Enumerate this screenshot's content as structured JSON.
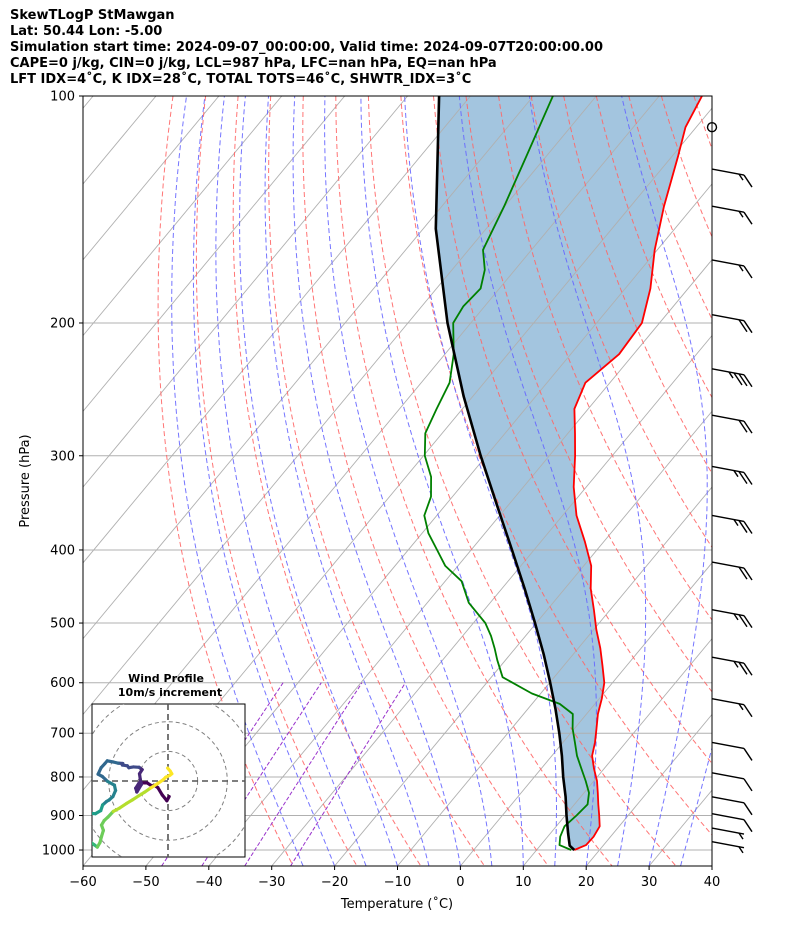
{
  "header": {
    "line1": "SkewTLogP StMawgan",
    "line2": "Lat: 50.44   Lon: -5.00",
    "line3": "Simulation start time: 2024-09-07_00:00:00, Valid time: 2024-09-07T20:00:00.00",
    "line4": "CAPE=0 j/kg, CIN=0 j/kg, LCL=987 hPa, LFC=nan hPa, EQ=nan hPa",
    "line5": "LFT IDX=4˚C, K IDX=28˚C, TOTAL TOTS=46˚C, SHWTR_IDX=3˚C"
  },
  "chart_data": [
    {
      "type": "line",
      "subtype": "skewt-logp",
      "xlabel": "Temperature (˚C)",
      "ylabel": "Pressure (hPa)",
      "xlim": [
        -60,
        40
      ],
      "ylim": [
        1050,
        100
      ],
      "y_scale": "log",
      "grid": true,
      "x_ticks": [
        "−60",
        "−50",
        "−40",
        "−30",
        "−20",
        "−10",
        "0",
        "10",
        "20",
        "30",
        "40"
      ],
      "x_tick_values": [
        -60,
        -50,
        -40,
        -30,
        -20,
        -10,
        0,
        10,
        20,
        30,
        40
      ],
      "y_ticks": [
        "100",
        "200",
        "300",
        "400",
        "500",
        "600",
        "700",
        "800",
        "900",
        "1000"
      ],
      "y_tick_values": [
        100,
        200,
        300,
        400,
        500,
        600,
        700,
        800,
        900,
        1000
      ],
      "colors": {
        "temperature": "#ff0000",
        "dewpoint": "#008000",
        "parcel": "#000000",
        "shade": "#a3c5df",
        "dry_adiabat": "#ff6666",
        "moist_adiabat": "#6666ff",
        "mixing_ratio": "#9933cc",
        "isotherm": "#b0b0b0"
      },
      "series": [
        {
          "key": "temperature",
          "p": [
            1000,
            985,
            960,
            930,
            900,
            870,
            840,
            810,
            780,
            750,
            720,
            690,
            660,
            630,
            600,
            570,
            540,
            510,
            480,
            450,
            420,
            390,
            360,
            330,
            300,
            280,
            260,
            240,
            220,
            200,
            180,
            160,
            140,
            120,
            110,
            100
          ],
          "t": [
            16.0,
            17.2,
            17.3,
            16.9,
            15.4,
            13.8,
            12.2,
            10.5,
            8.4,
            6.4,
            5.1,
            3.5,
            1.8,
            0.4,
            -1.3,
            -3.8,
            -6.5,
            -9.6,
            -12.6,
            -15.9,
            -18.8,
            -23.0,
            -27.8,
            -32.0,
            -35.9,
            -38.9,
            -42.2,
            -43.9,
            -42.3,
            -42.8,
            -46.0,
            -50.4,
            -54.7,
            -59.1,
            -61.7,
            -63.2
          ]
        },
        {
          "key": "dewpoint",
          "p": [
            1000,
            985,
            960,
            930,
            900,
            870,
            840,
            810,
            780,
            750,
            720,
            690,
            660,
            640,
            620,
            590,
            560,
            540,
            520,
            500,
            470,
            440,
            420,
            400,
            380,
            360,
            340,
            320,
            300,
            280,
            260,
            240,
            220,
            200,
            190,
            180,
            170,
            160,
            140,
            120,
            100
          ],
          "t": [
            15.5,
            13.0,
            12.0,
            11.3,
            11.8,
            12.1,
            10.8,
            8.7,
            6.4,
            4.0,
            1.9,
            -0.3,
            -2.2,
            -5.6,
            -11.4,
            -18.2,
            -21.3,
            -23.3,
            -25.5,
            -28.1,
            -33.4,
            -37.4,
            -42.0,
            -45.4,
            -49.0,
            -52.0,
            -53.4,
            -56.0,
            -59.8,
            -62.7,
            -64.1,
            -65.5,
            -68.6,
            -72.8,
            -73.4,
            -73.0,
            -74.8,
            -77.7,
            -80.1,
            -83.2,
            -86.9
          ]
        },
        {
          "key": "parcel",
          "p": [
            1000,
            987,
            950,
            900,
            850,
            800,
            750,
            700,
            650,
            600,
            550,
            500,
            450,
            400,
            350,
            300,
            250,
            200,
            150,
            100
          ],
          "t": [
            16.0,
            14.7,
            12.8,
            10.2,
            7.6,
            4.6,
            1.6,
            -1.8,
            -5.6,
            -9.9,
            -14.7,
            -20.2,
            -26.4,
            -33.5,
            -41.6,
            -50.9,
            -61.5,
            -73.7,
            -88.0,
            -105.0
          ]
        }
      ],
      "wind_barbs": [
        {
          "p": 110,
          "speed_kt": 0
        },
        {
          "p": 125,
          "speed_kt": 15
        },
        {
          "p": 140,
          "speed_kt": 15
        },
        {
          "p": 165,
          "speed_kt": 15
        },
        {
          "p": 195,
          "speed_kt": 20
        },
        {
          "p": 230,
          "speed_kt": 35
        },
        {
          "p": 265,
          "speed_kt": 20
        },
        {
          "p": 310,
          "speed_kt": 25
        },
        {
          "p": 360,
          "speed_kt": 25
        },
        {
          "p": 415,
          "speed_kt": 20
        },
        {
          "p": 480,
          "speed_kt": 25
        },
        {
          "p": 555,
          "speed_kt": 25
        },
        {
          "p": 630,
          "speed_kt": 15
        },
        {
          "p": 720,
          "speed_kt": 10
        },
        {
          "p": 790,
          "speed_kt": 10
        },
        {
          "p": 850,
          "speed_kt": 10
        },
        {
          "p": 895,
          "speed_kt": 10
        },
        {
          "p": 935,
          "speed_kt": 5
        },
        {
          "p": 975,
          "speed_kt": 5
        }
      ]
    },
    {
      "type": "line",
      "subtype": "hodograph",
      "title": "Wind Profile",
      "subtitle": "10m/s increment",
      "grid": true,
      "u": [
        0.3,
        -0.3,
        -1.5,
        -2.7,
        -3.7,
        -4.1,
        -5.5,
        -7.6,
        -8.5,
        -8.2,
        -7.0,
        -7.3,
        -7.5,
        -6.8,
        -7.6,
        -9.1,
        -10.3,
        -10.7,
        -12.0,
        -11.9,
        -13.1,
        -14.4,
        -16.0,
        -16.6,
        -17.6,
        -18.4,
        -17.3,
        -15.9,
        -14.1,
        -13.8,
        -14.5,
        -15.5,
        -16.2,
        -17.2,
        -17.7,
        -19.1,
        -20.9,
        -22.0,
        -23.6,
        -24.3,
        -25.2,
        -25.0,
        -23.6,
        -22.3,
        -20.4,
        -19.4,
        -18.6,
        -17.9,
        -17.5,
        -17.0,
        -17.5,
        -16.8,
        -15.8,
        -14.4,
        -12.7,
        -10.9,
        -9.4,
        -7.7,
        -6.1,
        -4.5,
        -2.6,
        -1.3,
        -0.6,
        0.5,
        1.0,
        0.6,
        -0.1
      ],
      "v": [
        -4.1,
        -5.2,
        -3.7,
        -1.7,
        -1.1,
        -1.4,
        -0.5,
        -0.5,
        -1.9,
        -2.9,
        -0.9,
        0.5,
        1.9,
        3.0,
        3.6,
        3.7,
        3.5,
        4.0,
        4.2,
        4.6,
        4.7,
        5.0,
        5.3,
        4.6,
        3.5,
        1.8,
        1.2,
        -0.1,
        -1.1,
        -2.5,
        -4.1,
        -5.0,
        -5.4,
        -6.3,
        -7.8,
        -8.6,
        -8.5,
        -9.4,
        -11.0,
        -12.8,
        -13.6,
        -14.6,
        -14.9,
        -15.6,
        -16.1,
        -16.8,
        -17.4,
        -16.2,
        -14.6,
        -13.0,
        -11.6,
        -10.4,
        -9.5,
        -8.0,
        -7.1,
        -5.9,
        -5.0,
        -3.9,
        -2.9,
        -1.8,
        -0.6,
        0.3,
        1.0,
        1.5,
        1.9,
        2.6,
        3.4
      ]
    }
  ]
}
